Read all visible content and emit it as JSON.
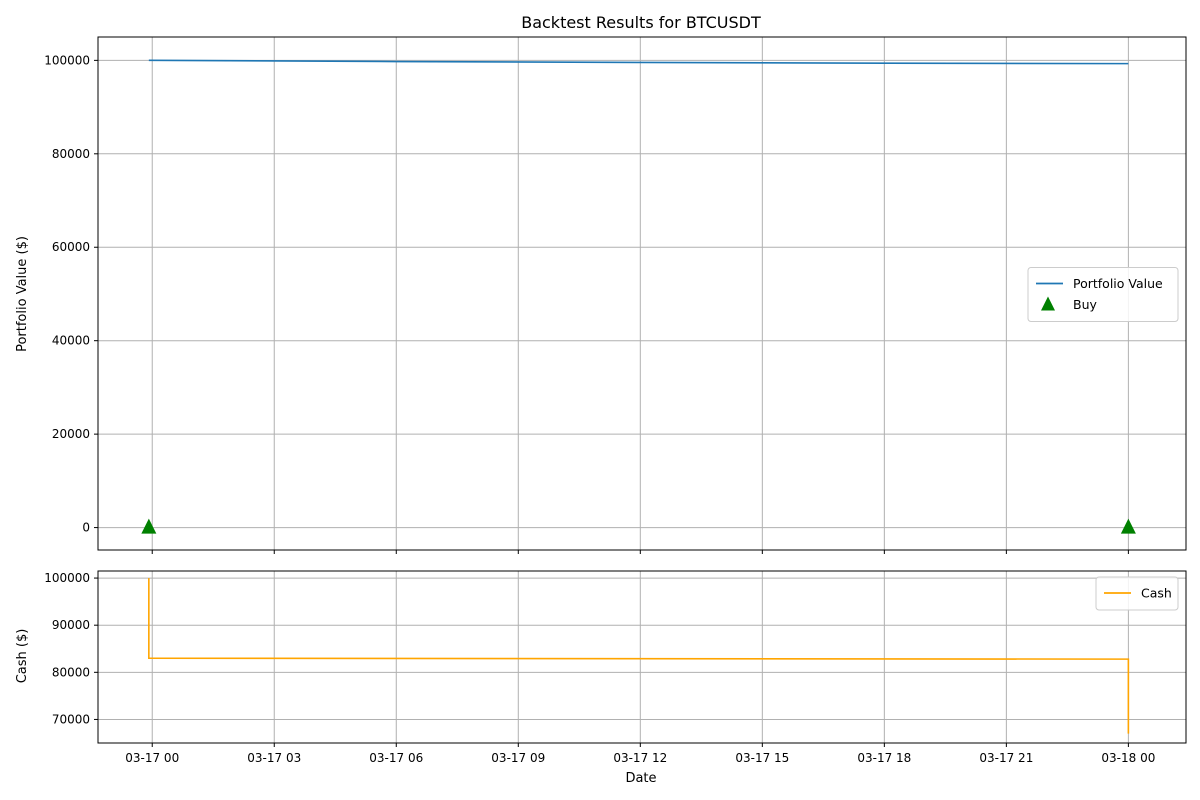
{
  "chart_data": [
    {
      "type": "line",
      "title": "Backtest Results for BTCUSDT",
      "xlabel": "",
      "ylabel": "Portfolio Value ($)",
      "xlim": [
        "2024-03-16T22:40",
        "2024-03-18T01:25"
      ],
      "ylim": [
        -4800,
        105000
      ],
      "yticks": [
        0,
        20000,
        40000,
        60000,
        80000,
        100000
      ],
      "grid": true,
      "legend_position": "center-right",
      "series": [
        {
          "name": "Portfolio Value",
          "kind": "line",
          "color": "#1f77b4",
          "points": [
            {
              "x": "2024-03-16T23:55",
              "y": 100000
            },
            {
              "x": "2024-03-17T06:00",
              "y": 99750
            },
            {
              "x": "2024-03-17T12:00",
              "y": 99550
            },
            {
              "x": "2024-03-17T18:00",
              "y": 99400
            },
            {
              "x": "2024-03-18T00:00",
              "y": 99300
            }
          ]
        },
        {
          "name": "Buy",
          "kind": "marker",
          "marker": "triangle-up",
          "color": "#008000",
          "points": [
            {
              "x": "2024-03-16T23:55",
              "y": 0
            },
            {
              "x": "2024-03-18T00:00",
              "y": 0
            }
          ]
        }
      ]
    },
    {
      "type": "line",
      "title": "",
      "xlabel": "Date",
      "ylabel": "Cash ($)",
      "xlim": [
        "2024-03-16T22:40",
        "2024-03-18T01:25"
      ],
      "ylim": [
        65000,
        101500
      ],
      "yticks": [
        70000,
        80000,
        90000,
        100000
      ],
      "grid": true,
      "legend_position": "top-right",
      "series": [
        {
          "name": "Cash",
          "kind": "step",
          "color": "#ffa500",
          "points": [
            {
              "x": "2024-03-16T23:55",
              "y": 100000
            },
            {
              "x": "2024-03-16T23:55",
              "y": 83000
            },
            {
              "x": "2024-03-18T00:00",
              "y": 82800
            },
            {
              "x": "2024-03-18T00:00",
              "y": 67000
            }
          ]
        }
      ]
    }
  ],
  "x_tick_labels": [
    {
      "t": "2024-03-17T00:00",
      "label": "03-17 00"
    },
    {
      "t": "2024-03-17T03:00",
      "label": "03-17 03"
    },
    {
      "t": "2024-03-17T06:00",
      "label": "03-17 06"
    },
    {
      "t": "2024-03-17T09:00",
      "label": "03-17 09"
    },
    {
      "t": "2024-03-17T12:00",
      "label": "03-17 12"
    },
    {
      "t": "2024-03-17T15:00",
      "label": "03-17 15"
    },
    {
      "t": "2024-03-17T18:00",
      "label": "03-17 18"
    },
    {
      "t": "2024-03-17T21:00",
      "label": "03-17 21"
    },
    {
      "t": "2024-03-18T00:00",
      "label": "03-18 00"
    }
  ]
}
